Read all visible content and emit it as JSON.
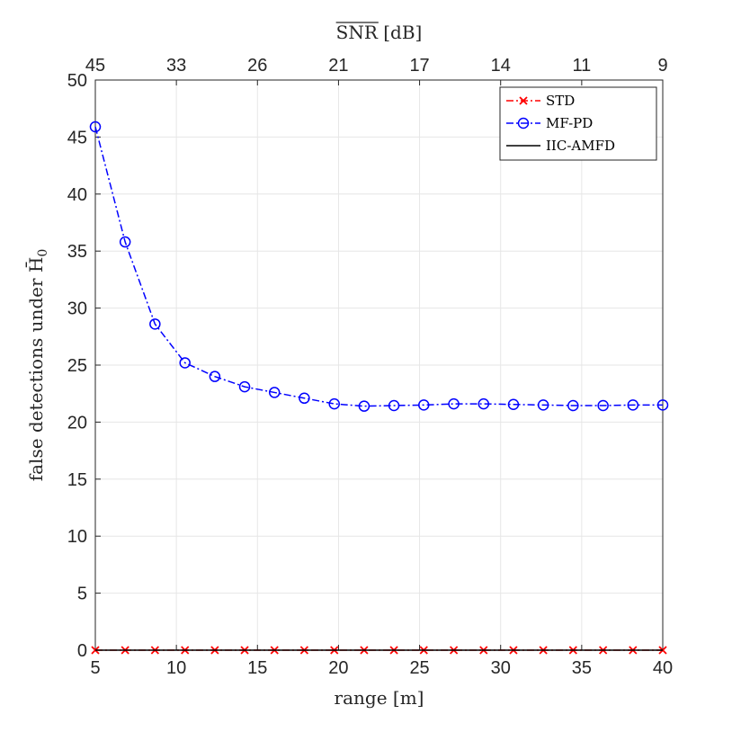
{
  "chart_data": {
    "type": "line",
    "title": "",
    "xlabel": "range [m]",
    "ylabel": "false detections under H̄",
    "ylabel_subscript": "0",
    "top_xlabel": "SNR",
    "top_xlabel_unit": "[dB]",
    "xlim": [
      5,
      40
    ],
    "ylim": [
      0,
      50
    ],
    "grid": true,
    "x_ticks": [
      5,
      10,
      15,
      20,
      25,
      30,
      35,
      40
    ],
    "y_ticks": [
      0,
      5,
      10,
      15,
      20,
      25,
      30,
      35,
      40,
      45,
      50
    ],
    "top_ticks": [
      {
        "range": 5,
        "label": "45"
      },
      {
        "range": 10,
        "label": "33"
      },
      {
        "range": 15,
        "label": "26"
      },
      {
        "range": 20,
        "label": "21"
      },
      {
        "range": 25,
        "label": "17"
      },
      {
        "range": 30,
        "label": "14"
      },
      {
        "range": 35,
        "label": "11"
      },
      {
        "range": 40,
        "label": "9"
      }
    ],
    "x": [
      5,
      6.84,
      8.68,
      10.53,
      12.37,
      14.21,
      16.05,
      17.89,
      19.74,
      21.58,
      23.42,
      25.26,
      27.11,
      28.95,
      30.79,
      32.63,
      34.47,
      36.32,
      38.16,
      40
    ],
    "legend_position": "top-right",
    "series": [
      {
        "name": "STD",
        "color": "#ff0000",
        "line_style": "dash-dot",
        "marker": "x",
        "values": [
          0,
          0,
          0,
          0,
          0,
          0,
          0,
          0,
          0,
          0,
          0,
          0,
          0,
          0,
          0,
          0,
          0,
          0,
          0,
          0
        ]
      },
      {
        "name": "MF-PD",
        "color": "#0000ff",
        "line_style": "dash-dot",
        "marker": "circle",
        "values": [
          45.9,
          35.8,
          28.6,
          25.2,
          24.0,
          23.1,
          22.6,
          22.1,
          21.6,
          21.4,
          21.45,
          21.5,
          21.6,
          21.6,
          21.55,
          21.5,
          21.45,
          21.45,
          21.5,
          21.5
        ]
      },
      {
        "name": "IIC-AMFD",
        "color": "#000000",
        "line_style": "solid",
        "marker": "none",
        "values": [
          0,
          0,
          0,
          0,
          0,
          0,
          0,
          0,
          0,
          0,
          0,
          0,
          0,
          0,
          0,
          0,
          0,
          0,
          0,
          0
        ]
      }
    ]
  }
}
